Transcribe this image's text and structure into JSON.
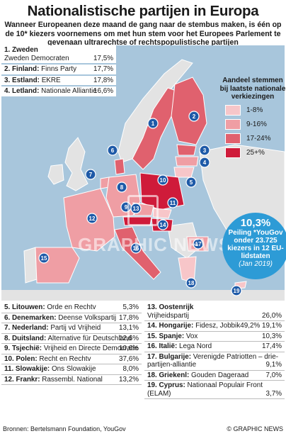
{
  "title": "Nationalistische partijen in Europa",
  "subtitle": "Wanneer Europeanen deze maand de gang naar de stembus maken, is één op de 10* kiezers voornemens om met hun stem voor het Europees Parlement te gevenaan ultrarechtse of rechtspopulistische partijen",
  "top_list": [
    {
      "num": "1. Zweden",
      "party": "Zweden Democraten",
      "pct": "17,5%"
    },
    {
      "num": "2. Finland:",
      "party": "Finns Party",
      "pct": "17,7%"
    },
    {
      "num": "3. Estland:",
      "party": "EKRE",
      "pct": "17,8%"
    },
    {
      "num": "4. Letland:",
      "party": "Nationale Alliantie",
      "pct": "16,6%"
    }
  ],
  "legend": {
    "title": "Aandeel stemmen bij laatste nationale verkiezingen",
    "items": [
      {
        "label": "1-8%",
        "color": "#f7c6c9"
      },
      {
        "label": "9-16%",
        "color": "#ef9ea4"
      },
      {
        "label": "17-24%",
        "color": "#e0616e"
      },
      {
        "label": "25+%",
        "color": "#cf1b3a"
      }
    ]
  },
  "poll": {
    "value": "10,3%",
    "text": "Peiling *YouGov onder 23.725 kiezers in 12 EU-lidstaten",
    "date": "(Jan 2019)"
  },
  "watermark": "GRAPHIC NEWS",
  "left_list": [
    {
      "num": "5. Litouwen:",
      "party": "Orde en Rechtv",
      "pct": "5,3%"
    },
    {
      "num": "6. Denemarken:",
      "party": "Deense Volkspartij",
      "pct": "17,8%"
    },
    {
      "num": "7. Nederland:",
      "party": "Partij vd Vrijheid",
      "pct": "13,1%"
    },
    {
      "num": "8. Duitsland:",
      "party": "Alternative für Deutschland",
      "pct": "12,6%"
    },
    {
      "num": "9. Tsjechië:",
      "party": "Vrijheid en Directe Democratie",
      "pct": "10,6%"
    },
    {
      "num": "10. Polen:",
      "party": "Recht en Rechtv",
      "pct": "37,6%"
    },
    {
      "num": "11. Slowakije:",
      "party": "Ons Slowakije",
      "pct": "8,0%"
    },
    {
      "num": "12. Frankr:",
      "party": "Rassembl. National",
      "pct": "13,2%"
    }
  ],
  "right_list": [
    {
      "num": "13. Oostenrijk",
      "party": "Vrijheidspartij",
      "pct": "26,0%"
    },
    {
      "num": "14. Hongarije:",
      "party": "Fidesz, Jobbik",
      "pct": "49,2% 19,1%"
    },
    {
      "num": "15. Spanje:",
      "party": "Vox",
      "pct": "10,3%"
    },
    {
      "num": "16. Italië:",
      "party": "Lega Nord",
      "pct": "17,4%"
    },
    {
      "num": "17. Bulgarije:",
      "party": "Verenigde Patriotten – drie-partijen-alliantie",
      "pct": "9,1%"
    },
    {
      "num": "18. Griekenl:",
      "party": "Gouden Dageraad",
      "pct": "7,0%"
    },
    {
      "num": "19. Cyprus:",
      "party": "Nationaal Populair Front (ELAM)",
      "pct": "3,7%"
    }
  ],
  "footer": {
    "source": "Bronnen: Bertelsmann Foundation, YouGov",
    "credit": "© GRAPHIC NEWS"
  },
  "map_numbers": [
    "1",
    "2",
    "3",
    "4",
    "5",
    "6",
    "7",
    "8",
    "9",
    "10",
    "11",
    "12",
    "13",
    "14",
    "15",
    "16",
    "17",
    "18",
    "19"
  ]
}
